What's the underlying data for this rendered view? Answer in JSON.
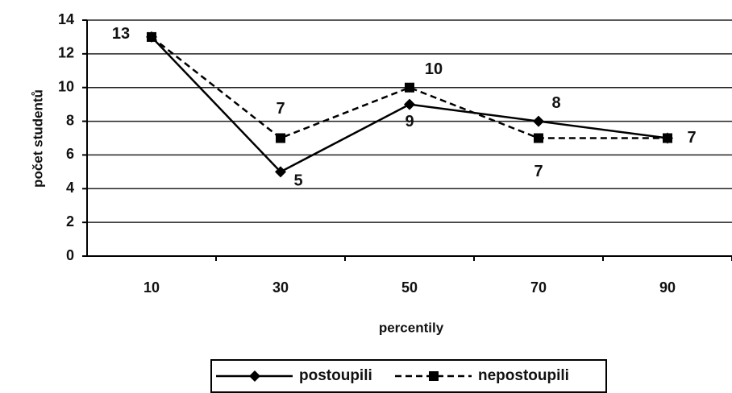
{
  "chart_data": {
    "type": "line",
    "categories": [
      "10",
      "30",
      "50",
      "70",
      "90"
    ],
    "series": [
      {
        "name": "postoupili",
        "color": "#000000",
        "dash": "solid",
        "marker": "diamond",
        "values": [
          13,
          5,
          9,
          8,
          7
        ]
      },
      {
        "name": "nepostoupili",
        "color": "#000000",
        "dash": "dashed",
        "marker": "square",
        "values": [
          13,
          7,
          10,
          7,
          7
        ],
        "value_labels": [
          null,
          "7",
          "10",
          "7",
          null
        ]
      }
    ],
    "ylim": [
      0,
      14
    ],
    "yticks": [
      0,
      2,
      4,
      6,
      8,
      10,
      12,
      14
    ],
    "y_label": "počet studentů",
    "x_label": "percentily",
    "grid": true,
    "legend": "bottom"
  }
}
